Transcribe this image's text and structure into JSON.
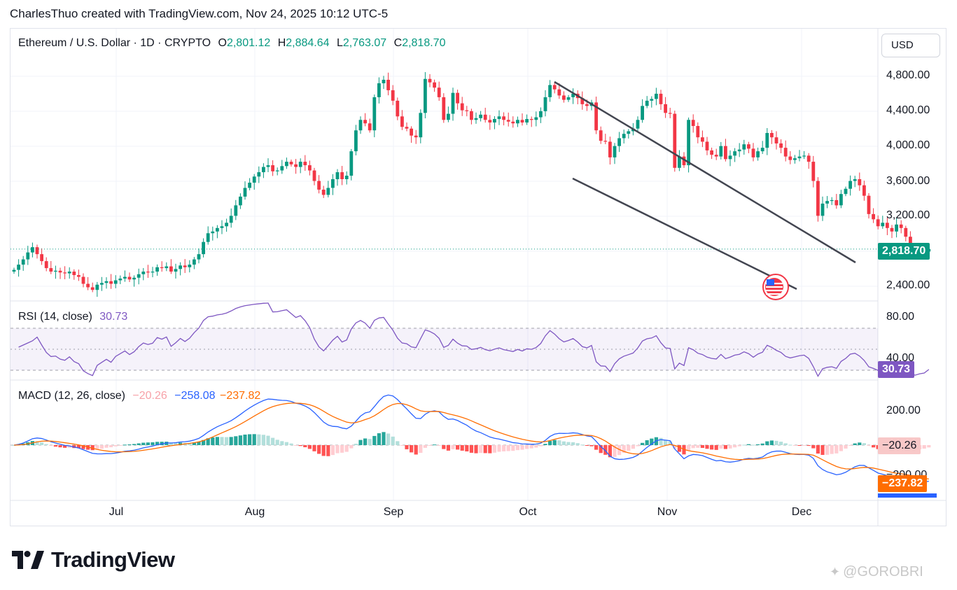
{
  "header": {
    "author_line": "CharlesThuo created with TradingView.com, Nov 24, 2025 10:12 UTC-5"
  },
  "legend": {
    "symbol": "Ethereum / U.S. Dollar · 1D · CRYPTO",
    "open_label": "O",
    "open": "2,801.12",
    "high_label": "H",
    "high": "2,884.64",
    "low_label": "L",
    "low": "2,763.07",
    "close_label": "C",
    "close": "2,818.70"
  },
  "currency_button": "USD",
  "price_axis": {
    "labels": [
      "4,800.00",
      "4,400.00",
      "4,000.00",
      "3,600.00",
      "3,200.00",
      "2,400.00"
    ],
    "last_price": "2,818.70"
  },
  "rsi": {
    "title": "RSI (14, close)",
    "value": "30.73",
    "axis_labels": [
      "80.00",
      "40.00"
    ]
  },
  "macd": {
    "title": "MACD (12, 26, close)",
    "histogram": "−20.26",
    "macd": "−258.08",
    "signal": "−237.82",
    "axis_labels": [
      "200.00",
      "−200.00"
    ]
  },
  "time_axis": [
    "Jul",
    "Aug",
    "Sep",
    "Oct",
    "Nov",
    "Dec"
  ],
  "brand": {
    "name": "TradingView"
  },
  "watermark": "@GOROBRI",
  "colors": {
    "up": "#089981",
    "down": "#f23645",
    "rsi": "#7e57c2",
    "macd": "#2962ff",
    "signal": "#ff6d00",
    "trendline": "#434651"
  },
  "chart_data": [
    {
      "type": "candlestick",
      "title": "Ethereum / U.S. Dollar · 1D · CRYPTO",
      "x_start": "2025-06-08",
      "ylim": [
        2300,
        5000
      ],
      "last_close": 2818.7,
      "closes": [
        2580,
        2640,
        2700,
        2780,
        2840,
        2760,
        2680,
        2600,
        2560,
        2570,
        2550,
        2540,
        2560,
        2520,
        2500,
        2420,
        2380,
        2350,
        2410,
        2430,
        2450,
        2420,
        2460,
        2480,
        2500,
        2470,
        2490,
        2530,
        2560,
        2550,
        2560,
        2610,
        2600,
        2620,
        2560,
        2590,
        2630,
        2610,
        2640,
        2700,
        2760,
        2900,
        3000,
        3020,
        3060,
        3080,
        3120,
        3200,
        3320,
        3420,
        3520,
        3580,
        3650,
        3700,
        3760,
        3780,
        3710,
        3720,
        3770,
        3820,
        3790,
        3760,
        3820,
        3780,
        3720,
        3600,
        3500,
        3440,
        3520,
        3620,
        3700,
        3620,
        3660,
        3940,
        4180,
        4300,
        4260,
        4180,
        4560,
        4720,
        4760,
        4640,
        4520,
        4340,
        4220,
        4200,
        4120,
        4100,
        4380,
        4770,
        4730,
        4670,
        4560,
        4300,
        4370,
        4610,
        4490,
        4410,
        4400,
        4300,
        4320,
        4360,
        4300,
        4270,
        4310,
        4340,
        4300,
        4280,
        4260,
        4300,
        4270,
        4310,
        4300,
        4330,
        4400,
        4560,
        4700,
        4650,
        4580,
        4530,
        4560,
        4600,
        4550,
        4480,
        4460,
        4500,
        4180,
        4060,
        4050,
        3870,
        4000,
        4090,
        4140,
        4170,
        4200,
        4300,
        4460,
        4520,
        4540,
        4600,
        4480,
        4380,
        4370,
        3750,
        3880,
        3780,
        4300,
        4230,
        4100,
        4050,
        3950,
        3900,
        3880,
        4000,
        3850,
        3890,
        3940,
        3960,
        4020,
        3970,
        3870,
        3940,
        3980,
        4150,
        4100,
        4030,
        3980,
        3880,
        3840,
        3860,
        3880,
        3890,
        3820,
        3600,
        3200,
        3340,
        3370,
        3380,
        3320,
        3450,
        3510,
        3600,
        3620,
        3550,
        3430,
        3220,
        3160,
        3080,
        3120,
        3060,
        3020,
        3100,
        3060,
        2960,
        2850,
        2760,
        2780,
        2790,
        2818.7
      ]
    },
    {
      "type": "line",
      "title": "RSI (14, close)",
      "ylim": [
        20,
        100
      ],
      "bands": [
        30,
        70
      ],
      "last": 30.73
    },
    {
      "type": "bar",
      "title": "MACD (12, 26, close)",
      "series": [
        {
          "name": "Histogram",
          "last": -20.26
        },
        {
          "name": "MACD",
          "last": -258.08
        },
        {
          "name": "Signal",
          "last": -237.82
        }
      ]
    }
  ]
}
